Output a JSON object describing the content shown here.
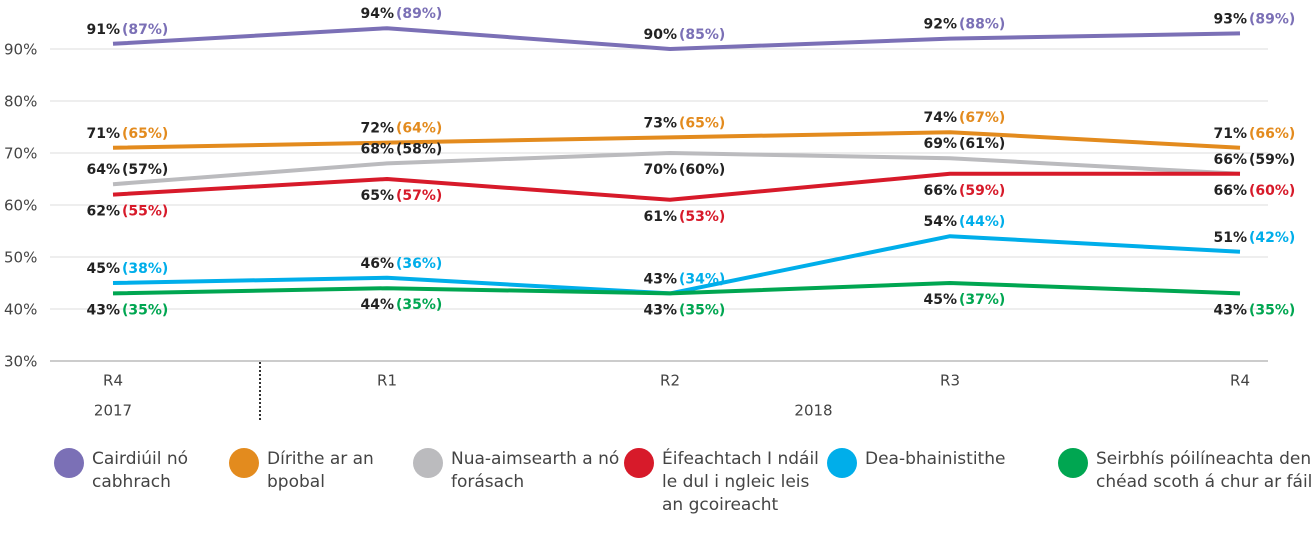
{
  "chart_data": {
    "type": "line",
    "categories": [
      "R4",
      "R1",
      "R2",
      "R3",
      "R4"
    ],
    "groups": [
      {
        "label": "2017",
        "start": 0
      },
      {
        "label": "2018",
        "start": 1
      }
    ],
    "ylim": [
      30,
      95
    ],
    "yticks": [
      {
        "value": 30,
        "label": "30%"
      },
      {
        "value": 40,
        "label": "40%"
      },
      {
        "value": 50,
        "label": "50%"
      },
      {
        "value": 60,
        "label": "60%"
      },
      {
        "value": 70,
        "label": "70%"
      },
      {
        "value": 80,
        "label": "80%"
      },
      {
        "value": 90,
        "label": "90%"
      }
    ],
    "grid": true,
    "legend": "bottom",
    "series": [
      {
        "name": "Cairdiúil nó cabhrach",
        "color": "#7b70b6",
        "label_color": "#7b70b6",
        "values": [
          91,
          94,
          90,
          92,
          93
        ],
        "value_labels": [
          "91%",
          "94%",
          "90%",
          "92%",
          "93%"
        ],
        "comparison_values": [
          87,
          89,
          85,
          88,
          89
        ],
        "comparison_labels": [
          "(87%)",
          "(89%)",
          "(85%)",
          "(88%)",
          "(89%)"
        ]
      },
      {
        "name": "Dírithe ar an bpobal",
        "color": "#e38b1e",
        "label_color": "#e38b1e",
        "values": [
          71,
          72,
          73,
          74,
          71
        ],
        "value_labels": [
          "71%",
          "72%",
          "73%",
          "74%",
          "71%"
        ],
        "comparison_values": [
          65,
          64,
          65,
          67,
          66
        ],
        "comparison_labels": [
          "(65%)",
          "(64%)",
          "(65%)",
          "(67%)",
          "(66%)"
        ]
      },
      {
        "name": "Nua-aimsearth a nó forásach",
        "color": "#bbbbbe",
        "label_color": "#222222",
        "values": [
          64,
          68,
          70,
          69,
          66
        ],
        "value_labels": [
          "64%",
          "68%",
          "70%",
          "69%",
          "66%"
        ],
        "comparison_values": [
          57,
          58,
          60,
          61,
          59
        ],
        "comparison_labels": [
          "(57%)",
          "(58%)",
          "(60%)",
          "(61%)",
          "(59%)"
        ]
      },
      {
        "name": "Éifeachtach I ndáil le dul i ngleic leis an gcoireacht",
        "color": "#d71a2a",
        "label_color": "#d71a2a",
        "values": [
          62,
          65,
          61,
          66,
          66
        ],
        "value_labels": [
          "62%",
          "65%",
          "61%",
          "66%",
          "66%"
        ],
        "comparison_values": [
          55,
          57,
          53,
          59,
          60
        ],
        "comparison_labels": [
          "(55%)",
          "(57%)",
          "(53%)",
          "(59%)",
          "(60%)"
        ]
      },
      {
        "name": "Dea-bhainistithe",
        "color": "#00aeea",
        "label_color": "#00aeea",
        "values": [
          45,
          46,
          43,
          54,
          51
        ],
        "value_labels": [
          "45%",
          "46%",
          "43%",
          "54%",
          "51%"
        ],
        "comparison_values": [
          38,
          36,
          34,
          44,
          42
        ],
        "comparison_labels": [
          "(38%)",
          "(36%)",
          "(34%)",
          "(44%)",
          "(42%)"
        ]
      },
      {
        "name": "Seirbhís póilíneachta den chéad scoth á chur ar fáil",
        "color": "#00a651",
        "label_color": "#00a651",
        "values": [
          43,
          44,
          43,
          45,
          43
        ],
        "value_labels": [
          "43%",
          "44%",
          "43%",
          "45%",
          "43%"
        ],
        "comparison_values": [
          35,
          35,
          35,
          37,
          35
        ],
        "comparison_labels": [
          "(35%)",
          "(35%)",
          "(35%)",
          "(37%)",
          "(35%)"
        ]
      }
    ]
  }
}
